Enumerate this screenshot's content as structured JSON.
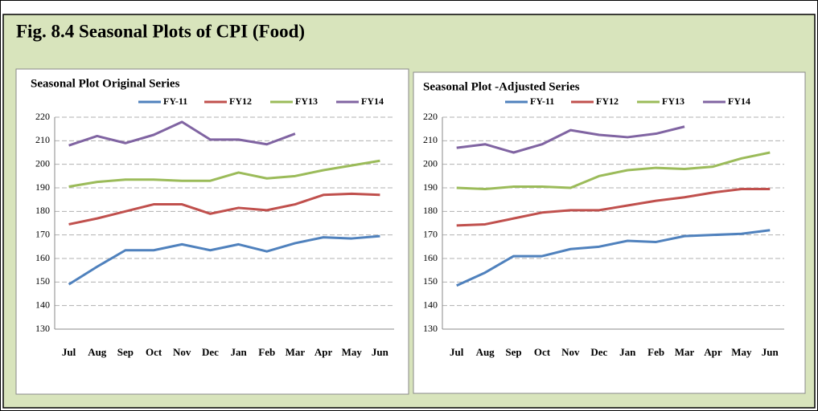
{
  "title": "Fig. 8.4 Seasonal Plots of CPI (Food)",
  "chart_data": [
    {
      "type": "line",
      "title": "Seasonal Plot Original Series",
      "categories": [
        "Jul",
        "Aug",
        "Sep",
        "Oct",
        "Nov",
        "Dec",
        "Jan",
        "Feb",
        "Mar",
        "Apr",
        "May",
        "Jun"
      ],
      "ylim": [
        130,
        220
      ],
      "yticks": [
        130,
        140,
        150,
        160,
        170,
        180,
        190,
        200,
        210,
        220
      ],
      "grid": true,
      "legend": "top",
      "series": [
        {
          "name": "FY-11",
          "color": "#4f81bd",
          "values": [
            149,
            156.5,
            163.5,
            163.5,
            166,
            163.5,
            166,
            163,
            166.5,
            169,
            168.5,
            169.5
          ]
        },
        {
          "name": "FY12",
          "color": "#c0504d",
          "values": [
            174.5,
            177,
            180,
            183,
            183,
            179,
            181.5,
            180.5,
            183,
            187,
            187.5,
            187
          ]
        },
        {
          "name": "FY13",
          "color": "#9bbb59",
          "values": [
            190.5,
            192.5,
            193.5,
            193.5,
            193,
            193,
            196.5,
            194,
            195,
            197.5,
            199.5,
            201.5
          ]
        },
        {
          "name": "FY14",
          "color": "#8064a2",
          "values": [
            208,
            212,
            209,
            212.5,
            218,
            210.5,
            210.5,
            208.5,
            213,
            null,
            null,
            null
          ]
        }
      ]
    },
    {
      "type": "line",
      "title": "Seasonal Plot -Adjusted Series",
      "categories": [
        "Jul",
        "Aug",
        "Sep",
        "Oct",
        "Nov",
        "Dec",
        "Jan",
        "Feb",
        "Mar",
        "Apr",
        "May",
        "Jun"
      ],
      "ylim": [
        130,
        220
      ],
      "yticks": [
        130,
        140,
        150,
        160,
        170,
        180,
        190,
        200,
        210,
        220
      ],
      "grid": true,
      "legend": "top",
      "series": [
        {
          "name": "FY-11",
          "color": "#4f81bd",
          "values": [
            148.5,
            154,
            161,
            161,
            164,
            165,
            167.5,
            167,
            169.5,
            170,
            170.5,
            172
          ]
        },
        {
          "name": "FY12",
          "color": "#c0504d",
          "values": [
            174,
            174.5,
            177,
            179.5,
            180.5,
            180.5,
            182.5,
            184.5,
            186,
            188,
            189.5,
            189.5
          ]
        },
        {
          "name": "FY13",
          "color": "#9bbb59",
          "values": [
            190,
            189.5,
            190.5,
            190.5,
            190,
            195,
            197.5,
            198.5,
            198,
            199,
            202.5,
            205
          ]
        },
        {
          "name": "FY14",
          "color": "#8064a2",
          "values": [
            207,
            208.5,
            205,
            208.5,
            214.5,
            212.5,
            211.5,
            213,
            216,
            null,
            null,
            null
          ]
        }
      ]
    }
  ]
}
